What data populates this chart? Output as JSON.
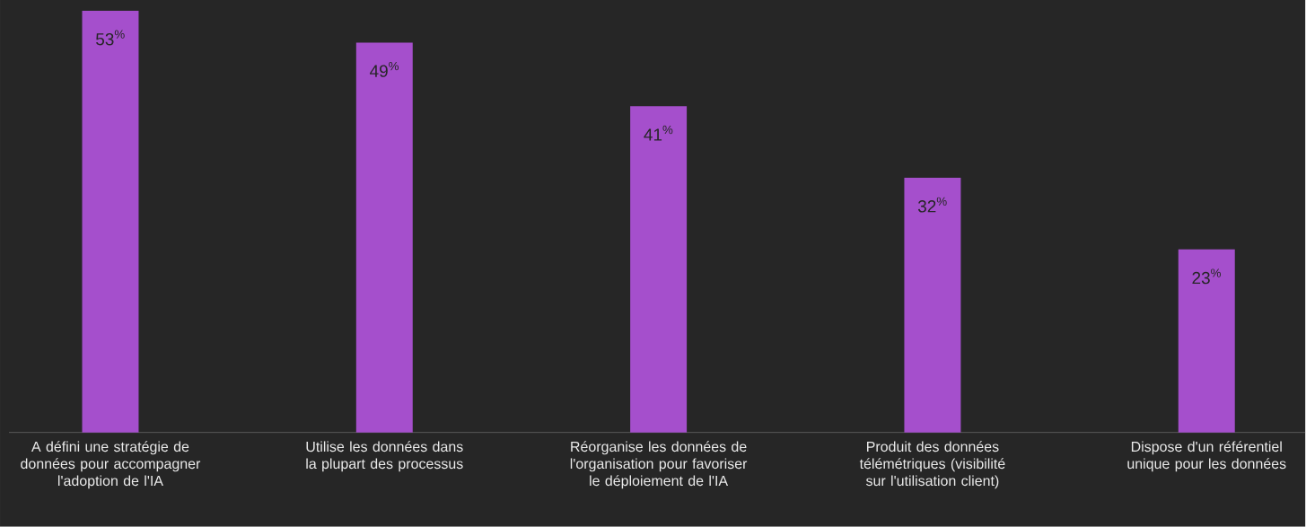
{
  "chart_data": {
    "type": "bar",
    "categories": [
      "A défini une stratégie de données pour accompagner l'adoption de l'IA",
      "Utilise les données dans la plupart des processus",
      "Réorganise les données de l'organisation pour favoriser le déploiement de l'IA",
      "Produit des données télémétriques (visibilité sur l'utilisation client)",
      "Dispose d'un référentiel unique pour les données"
    ],
    "values": [
      53,
      49,
      41,
      32,
      23
    ],
    "value_labels": [
      "53$^{%}$",
      "49$^{%}$",
      "41$^{%}$",
      "32$^{%}$",
      "23$^{%}$"
    ],
    "color": "#a54fcc"
  }
}
